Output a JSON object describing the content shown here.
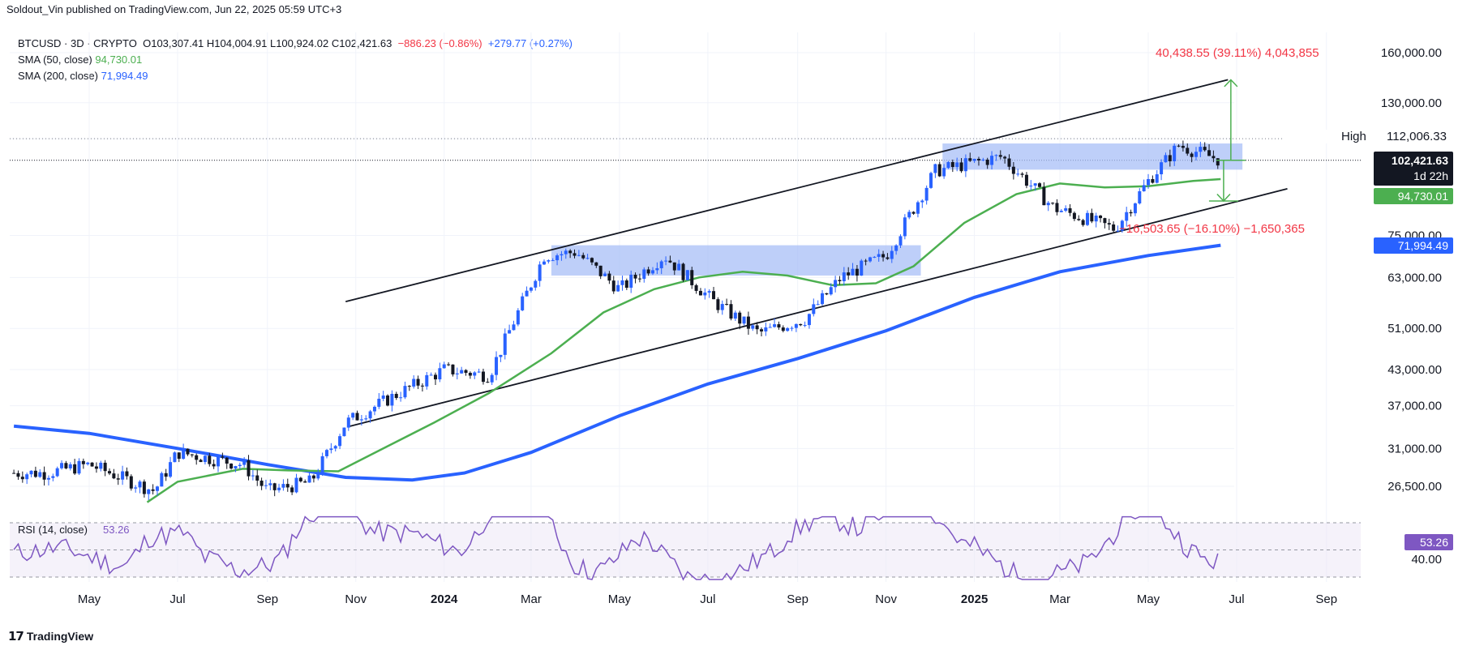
{
  "header": {
    "credit": "Soldout_Vin published on TradingView.com, Jun 22, 2025 05:59 UTC+3"
  },
  "legend": {
    "symbol_line": "BTCUSD · 3D · CRYPTO",
    "ohlc": "O103,307.41  H104,004.91  L100,924.02  C102,421.63",
    "change": "−886.23 (−0.86%)",
    "change2": "+279.77 (+0.27%)",
    "sma50_label": "SMA (50, close)",
    "sma50_value": "94,730.01",
    "sma200_label": "SMA (200, close)",
    "sma200_value": "71,994.49",
    "rsi_label": "RSI (14, close)",
    "rsi_value": "53.26"
  },
  "measurements": {
    "up": "40,438.55 (39.11%) 4,043,855",
    "down": "−16,503.65 (−16.10%) −1,650,365"
  },
  "price_axis": {
    "ticks": [
      "160,000.00",
      "130,000.00",
      "112,006.33",
      "75,000.00",
      "63,000.00",
      "51,000.00",
      "43,000.00",
      "37,000.00",
      "31,000.00",
      "26,500.00"
    ],
    "high_label": "High",
    "last_price": "102,421.63",
    "countdown": "1d 22h",
    "sma50_tag": "94,730.01",
    "sma200_tag": "71,994.49",
    "rsi_tag": "53.26",
    "rsi_tick": "40.00"
  },
  "time_axis": [
    "May",
    "Jul",
    "Sep",
    "Nov",
    "2024",
    "Mar",
    "May",
    "Jul",
    "Sep",
    "Nov",
    "2025",
    "Mar",
    "May",
    "Jul",
    "Sep"
  ],
  "footer": {
    "brand": "TradingView"
  },
  "colors": {
    "up": "#2962ff",
    "down": "#131722",
    "sma50": "#4caf50",
    "sma200": "#2962ff",
    "rsi": "#7e57c2",
    "measure_up": "#f23645",
    "zone": "#a8bff7"
  },
  "chart_data": {
    "type": "candlestick",
    "ylim": [
      22000,
      175000
    ],
    "log_scale": true,
    "series": [
      {
        "name": "BTCUSD",
        "close_samples": [
          [
            "2023-04-01",
            28000
          ],
          [
            "2023-05-01",
            29000
          ],
          [
            "2023-06-15",
            26000
          ],
          [
            "2023-07-01",
            30500
          ],
          [
            "2023-08-15",
            29000
          ],
          [
            "2023-09-01",
            26000
          ],
          [
            "2023-10-01",
            27000
          ],
          [
            "2023-10-25",
            34500
          ],
          [
            "2023-12-01",
            39000
          ],
          [
            "2024-01-01",
            43000
          ],
          [
            "2024-02-01",
            42000
          ],
          [
            "2024-03-10",
            69000
          ],
          [
            "2024-04-01",
            70000
          ],
          [
            "2024-05-01",
            60000
          ],
          [
            "2024-06-01",
            69000
          ],
          [
            "2024-07-05",
            57000
          ],
          [
            "2024-08-05",
            50000
          ],
          [
            "2024-09-06",
            53000
          ],
          [
            "2024-10-01",
            63000
          ],
          [
            "2024-11-01",
            69000
          ],
          [
            "2024-12-05",
            98000
          ],
          [
            "2025-01-20",
            104000
          ],
          [
            "2025-02-25",
            84000
          ],
          [
            "2025-04-08",
            77000
          ],
          [
            "2025-05-01",
            94000
          ],
          [
            "2025-05-22",
            109000
          ],
          [
            "2025-06-20",
            102421.63
          ]
        ]
      },
      {
        "name": "SMA (50, close)",
        "last": 94730.01
      },
      {
        "name": "SMA (200, close)",
        "last": 71994.49
      },
      {
        "name": "RSI (14, close)",
        "last": 53.26
      }
    ]
  }
}
